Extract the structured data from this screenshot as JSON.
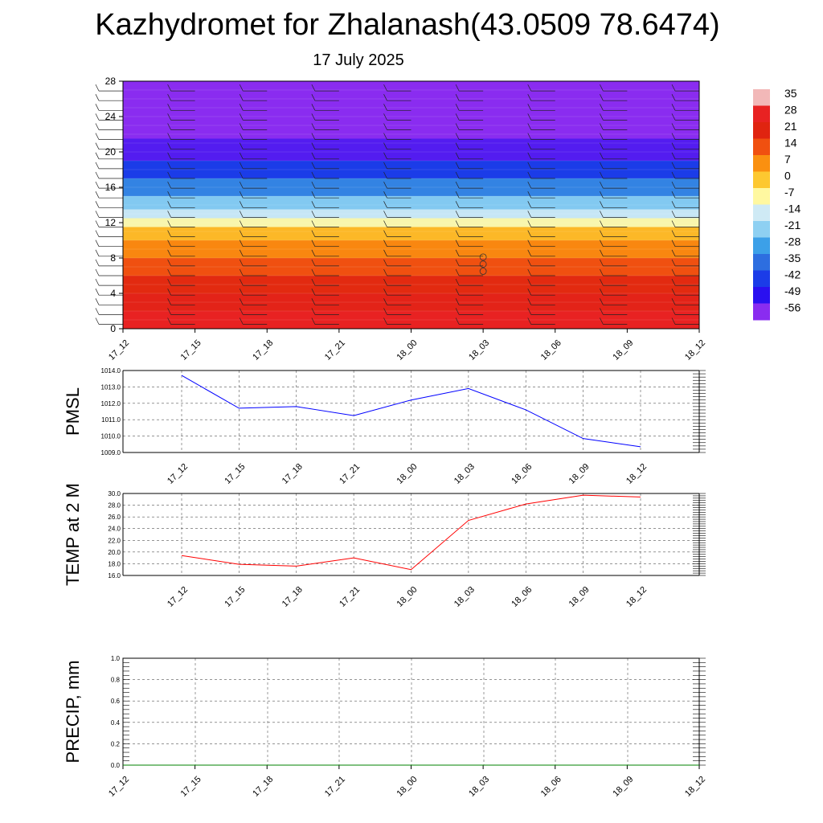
{
  "header": {
    "title": "Kazhydromet for Zhalanash(43.0509 78.6474)",
    "subtitle": "17 July 2025"
  },
  "chart_data": [
    {
      "type": "heatmap",
      "panel": "vertical-profile",
      "x_ticks": [
        "17_12",
        "17_15",
        "17_18",
        "17_21",
        "18_00",
        "18_03",
        "18_06",
        "18_09",
        "18_12"
      ],
      "y_ticks": [
        0,
        4,
        8,
        12,
        16,
        20,
        24,
        28
      ],
      "ylim": [
        0,
        28
      ],
      "colorbar": {
        "labels": [
          35,
          28,
          21,
          14,
          7,
          0,
          -7,
          -14,
          -21,
          -28,
          -35,
          -42,
          -49,
          -56
        ],
        "colors": {
          "35": "#f2b8b8",
          "28": "#e82222",
          "21": "#e02410",
          "14": "#f05010",
          "7": "#fa9010",
          "0": "#fdc830",
          "-7": "#fff8a0",
          "-14": "#cfeaf5",
          "-21": "#8ed0f2",
          "-28": "#3ca0e8",
          "-35": "#2d6ee0",
          "-42": "#1b3ce8",
          "-49": "#2a10f0",
          "-56": "#8a2cf0"
        }
      },
      "temperature_layers": [
        {
          "bottom": 0,
          "top": 2,
          "value": 28
        },
        {
          "bottom": 2,
          "top": 4,
          "value": 24
        },
        {
          "bottom": 4,
          "top": 6,
          "value": 20
        },
        {
          "bottom": 6,
          "top": 8,
          "value": 14
        },
        {
          "bottom": 8,
          "top": 10,
          "value": 8
        },
        {
          "bottom": 10,
          "top": 11.5,
          "value": 2
        },
        {
          "bottom": 11.5,
          "top": 12.5,
          "value": -8
        },
        {
          "bottom": 12.5,
          "top": 13.5,
          "value": -15
        },
        {
          "bottom": 13.5,
          "top": 15,
          "value": -22
        },
        {
          "bottom": 15,
          "top": 17,
          "value": -32
        },
        {
          "bottom": 17,
          "top": 19,
          "value": -42
        },
        {
          "bottom": 19,
          "top": 21.5,
          "value": -52
        },
        {
          "bottom": 21.5,
          "top": 28,
          "value": -58
        }
      ],
      "calm_markers": {
        "x": "18_03",
        "heights": [
          6.5,
          7.3,
          8.1
        ]
      }
    },
    {
      "type": "line",
      "ylabel": "PMSL",
      "x": [
        "17_12",
        "17_15",
        "17_18",
        "17_21",
        "18_00",
        "18_03",
        "18_06",
        "18_09",
        "18_12"
      ],
      "y_ticks": [
        "1009.0",
        "1010.0",
        "1011.0",
        "1012.0",
        "1013.0",
        "1014.0"
      ],
      "ylim": [
        1009,
        1014
      ],
      "series": [
        {
          "values": [
            1013.7,
            1011.7,
            1011.8,
            1011.25,
            1012.2,
            1012.9,
            1011.6,
            1009.85,
            1009.35
          ],
          "color": "#0000ff"
        }
      ],
      "grid": true
    },
    {
      "type": "line",
      "ylabel": "TEMP at 2 M",
      "x": [
        "17_12",
        "17_15",
        "17_18",
        "17_21",
        "18_00",
        "18_03",
        "18_06",
        "18_09",
        "18_12"
      ],
      "y_ticks": [
        "16.0",
        "18.0",
        "20.0",
        "22.0",
        "24.0",
        "26.0",
        "28.0",
        "30.0"
      ],
      "ylim": [
        16,
        30
      ],
      "series": [
        {
          "values": [
            19.4,
            17.9,
            17.6,
            19.0,
            17.0,
            25.4,
            28.2,
            29.7,
            29.4
          ],
          "color": "#ff0000"
        }
      ],
      "grid": true
    },
    {
      "type": "line",
      "ylabel": "PRECIP, mm",
      "x_ticks": [
        "17_12",
        "17_15",
        "17_18",
        "17_21",
        "18_00",
        "18_03",
        "18_06",
        "18_09",
        "18_12"
      ],
      "y_ticks": [
        "0.0",
        "0.2",
        "0.4",
        "0.6",
        "0.8",
        "1.0"
      ],
      "ylim": [
        0,
        1
      ],
      "series": [
        {
          "values": [
            0,
            0,
            0,
            0,
            0,
            0,
            0,
            0,
            0
          ],
          "color": "#008000"
        }
      ],
      "grid": true
    }
  ]
}
